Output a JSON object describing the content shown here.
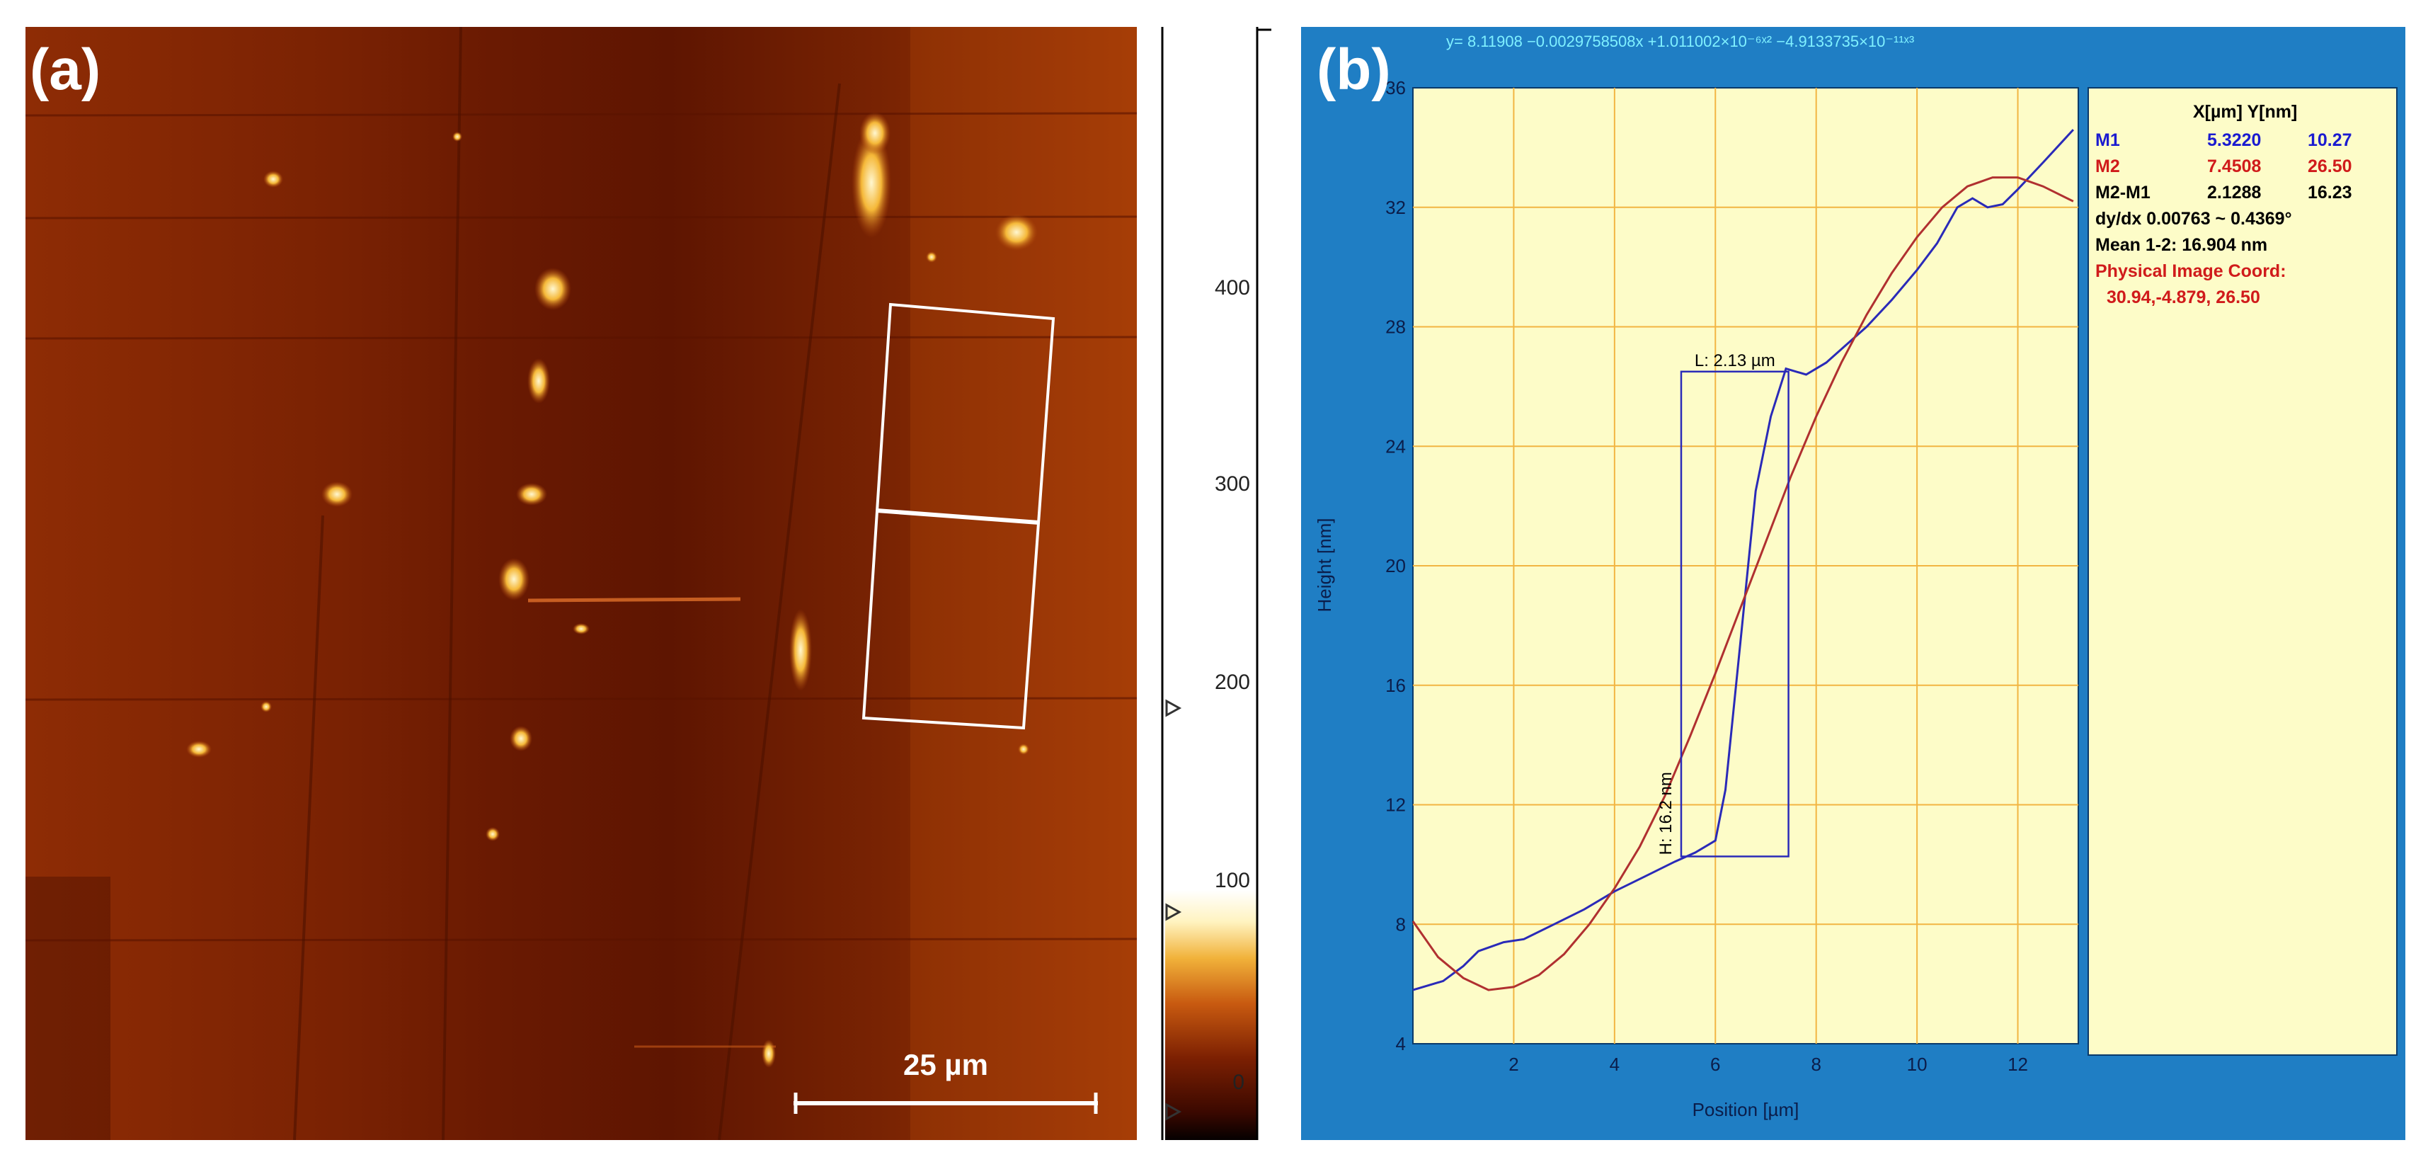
{
  "panel_a": {
    "label": "(a)",
    "scale_bar": "25 µm",
    "colorbar_ticks": [
      "400",
      "300",
      "200",
      "100",
      "0"
    ],
    "colors": {
      "dark": "#3a0800",
      "base": "#8a2a04",
      "mid": "#c64d0c",
      "bright": "#ffe79a"
    }
  },
  "panel_b": {
    "label": "(b)",
    "equation": "y= 8.11908 −0.0029758508x +1.011002×10⁻⁶ˣ² −4.9133735×10⁻¹¹ˣ³",
    "colors": {
      "frame": "#1f7ec4",
      "plot_bg": "#fdfcc8",
      "grid": "#f2b542",
      "profile": "#2a2ab8",
      "fit": "#b03030"
    }
  },
  "chart_data": {
    "type": "line",
    "title": "",
    "xlabel": "Position [µm]",
    "ylabel": "Height [nm]",
    "xlim": [
      0,
      13.2
    ],
    "ylim": [
      4,
      36
    ],
    "xticks": [
      2,
      4,
      6,
      8,
      10,
      12
    ],
    "yticks": [
      4,
      8,
      12,
      16,
      20,
      24,
      28,
      32,
      36
    ],
    "grid": true,
    "series": [
      {
        "name": "profile",
        "x": [
          0,
          0.6,
          1.0,
          1.3,
          1.8,
          2.2,
          2.8,
          3.4,
          4.0,
          4.6,
          5.2,
          5.6,
          6.0,
          6.2,
          6.5,
          6.8,
          7.1,
          7.4,
          7.8,
          8.2,
          8.6,
          9.0,
          9.5,
          10.0,
          10.4,
          10.8,
          11.1,
          11.4,
          11.7,
          12.0,
          12.5,
          13.1
        ],
        "y": [
          5.8,
          6.1,
          6.6,
          7.1,
          7.4,
          7.5,
          8.0,
          8.5,
          9.1,
          9.6,
          10.1,
          10.4,
          10.8,
          12.5,
          17.5,
          22.5,
          25.0,
          26.6,
          26.4,
          26.8,
          27.4,
          28.0,
          28.9,
          29.9,
          30.8,
          32.0,
          32.3,
          32.0,
          32.1,
          32.6,
          33.5,
          34.6
        ]
      },
      {
        "name": "polynomial fit",
        "x": [
          0,
          0.5,
          1.0,
          1.5,
          2.0,
          2.5,
          3.0,
          3.5,
          4.0,
          4.5,
          5.0,
          5.5,
          6.0,
          6.5,
          7.0,
          7.5,
          8.0,
          8.5,
          9.0,
          9.5,
          10.0,
          10.5,
          11.0,
          11.5,
          12.0,
          12.5,
          13.1
        ],
        "y": [
          8.1,
          6.9,
          6.2,
          5.8,
          5.9,
          6.3,
          7.0,
          8.0,
          9.2,
          10.6,
          12.3,
          14.3,
          16.4,
          18.6,
          20.8,
          23.0,
          25.0,
          26.8,
          28.4,
          29.8,
          31.0,
          32.0,
          32.7,
          33.0,
          33.0,
          32.7,
          32.2
        ]
      }
    ],
    "annotations": {
      "length_label": "L:  2.13 µm",
      "height_label": "H:  16.2 nm"
    },
    "readout": {
      "header": "X[µm]  Y[nm]",
      "m1": {
        "label": "M1",
        "x": "5.3220",
        "y": "10.27"
      },
      "m2": {
        "label": "M2",
        "x": "7.4508",
        "y": "26.50"
      },
      "diff": {
        "label": "M2-M1",
        "x": "2.1288",
        "y": "16.23"
      },
      "slope": "dy/dx 0.00763 ~ 0.4369°",
      "mean": "Mean 1-2:  16.904 nm",
      "coord_title": "Physical Image Coord:",
      "coord_value": "30.94,-4.879, 26.50"
    }
  }
}
